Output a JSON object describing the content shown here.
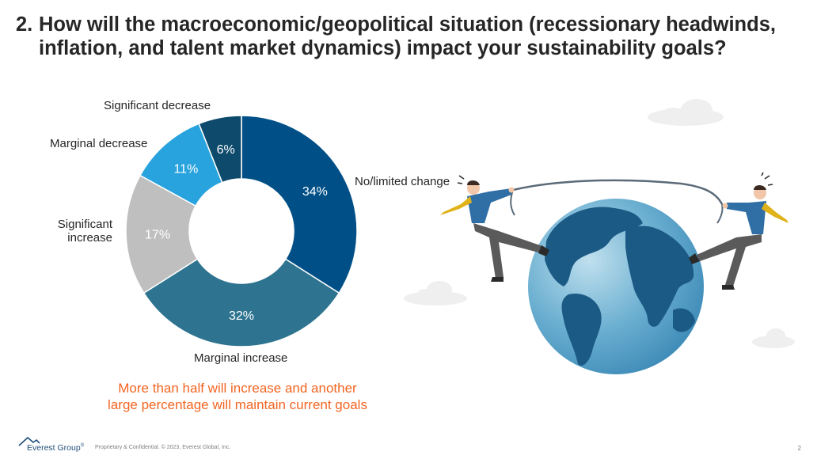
{
  "title": {
    "number": "2.",
    "line1": "How will the macroeconomic/geopolitical situation (recessionary headwinds,",
    "line2": "inflation, and talent market dynamics) impact your sustainability goals?"
  },
  "chart_data": {
    "type": "pie",
    "donut": true,
    "slices": [
      {
        "label": "No/limited change",
        "value": 34,
        "display": "34%",
        "color": "#005087"
      },
      {
        "label": "Marginal increase",
        "value": 32,
        "display": "32%",
        "color": "#2e7490"
      },
      {
        "label": "Significant increase",
        "value": 17,
        "display": "17%",
        "color": "#bfbfbf"
      },
      {
        "label": "Marginal decrease",
        "value": 11,
        "display": "11%",
        "color": "#29a3dd"
      },
      {
        "label": "Significant decrease",
        "value": 6,
        "display": "6%",
        "color": "#0d4a6b"
      }
    ]
  },
  "labels": {
    "no_change": "No/limited change",
    "marginal_increase": "Marginal increase",
    "significant_increase_1": "Significant",
    "significant_increase_2": "increase",
    "marginal_decrease": "Marginal decrease",
    "significant_decrease": "Significant decrease"
  },
  "callout": {
    "line1": "More than half will increase and another",
    "line2": "large percentage will maintain current goals"
  },
  "illustration": {
    "icon": "tug-of-war-globe-illustration"
  },
  "footer": {
    "brand": "Everest Group",
    "trademark": "®",
    "confidential": "Proprietary & Confidential. © 2023, Everest Global, Inc.",
    "page": "2"
  }
}
